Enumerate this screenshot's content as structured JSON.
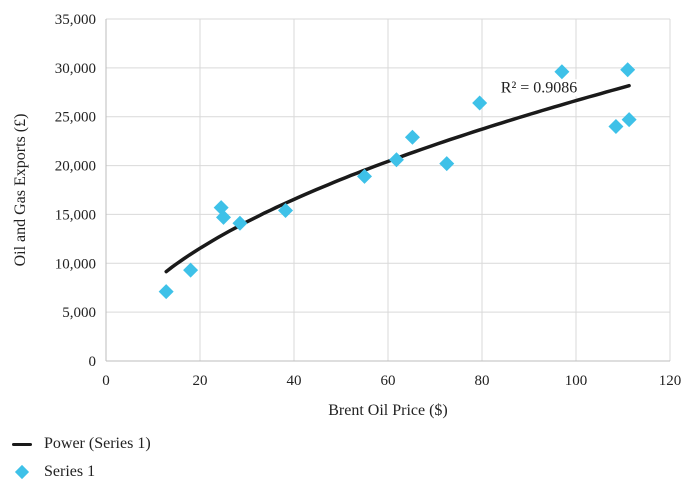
{
  "chart_data": {
    "type": "scatter",
    "xlabel": "Brent Oil Price ($)",
    "ylabel": "Oil and Gas Exports (£)",
    "xlim": [
      0,
      120
    ],
    "ylim": [
      0,
      35000
    ],
    "xticks": [
      0,
      20,
      40,
      60,
      80,
      100,
      120
    ],
    "yticks": [
      0,
      5000,
      10000,
      15000,
      20000,
      25000,
      30000,
      35000
    ],
    "xtick_labels": [
      "0",
      "20",
      "40",
      "60",
      "80",
      "100",
      "120"
    ],
    "ytick_labels": [
      "0",
      "5,000",
      "10,000",
      "15,000",
      "20,000",
      "25,000",
      "30,000",
      "35,000"
    ],
    "grid": true,
    "legend_position": "bottom-left",
    "series": [
      {
        "name": "Series 1",
        "marker": "diamond",
        "color": "#3ec1e8",
        "x": [
          12.8,
          18.0,
          24.5,
          25.0,
          28.5,
          38.2,
          55.0,
          61.8,
          65.2,
          72.5,
          79.5,
          97.0,
          108.5,
          111.0,
          111.3
        ],
        "y": [
          7100,
          9300,
          15700,
          14700,
          14100,
          15400,
          18900,
          20600,
          22900,
          20200,
          26400,
          29600,
          24000,
          29800,
          24700
        ]
      }
    ],
    "trendline": {
      "name": "Power (Series 1)",
      "type": "power",
      "coef_a": 2430,
      "exponent": 0.52,
      "x_range": [
        12.8,
        111.3
      ],
      "color": "#1a1a1a",
      "annotation": "R² = 0.9086",
      "annotation_x": 84,
      "annotation_y": 27500
    },
    "legend": [
      {
        "label": "Power (Series 1)",
        "kind": "line",
        "color": "#1a1a1a"
      },
      {
        "label": "Series 1",
        "kind": "diamond",
        "color": "#3ec1e8"
      }
    ]
  }
}
